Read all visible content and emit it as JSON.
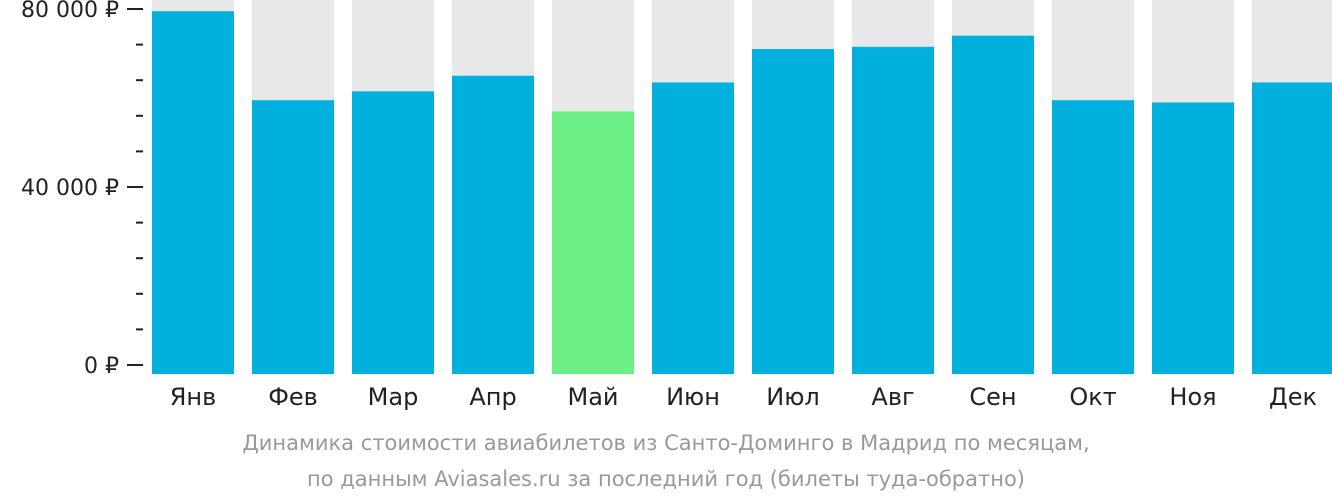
{
  "chart_data": {
    "type": "bar",
    "categories": [
      "Янв",
      "Фев",
      "Мар",
      "Апр",
      "Май",
      "Июн",
      "Июл",
      "Авг",
      "Сен",
      "Окт",
      "Ноя",
      "Дек"
    ],
    "values": [
      79500,
      59500,
      61500,
      65000,
      57000,
      63500,
      71000,
      71500,
      74000,
      59500,
      59000,
      63500
    ],
    "highlight_index": 4,
    "ylim": [
      0,
      80000
    ],
    "yticks": [
      {
        "value": 0,
        "label": "0 ₽"
      },
      {
        "value": 40000,
        "label": "40 000 ₽"
      },
      {
        "value": 80000,
        "label": "80 000 ₽"
      }
    ],
    "minor_ticks_between_labels": 4,
    "title": "",
    "xlabel": "",
    "ylabel": "",
    "grid": false,
    "colors": {
      "bar": "#02b0dd",
      "highlight": "#6cf085",
      "track": "#e8e8e8"
    }
  },
  "caption": {
    "line1": "Динамика стоимости авиабилетов из Санто-Доминго в Мадрид по месяцам,",
    "line2": "по данным Aviasales.ru за последний год (билеты туда-обратно)"
  }
}
